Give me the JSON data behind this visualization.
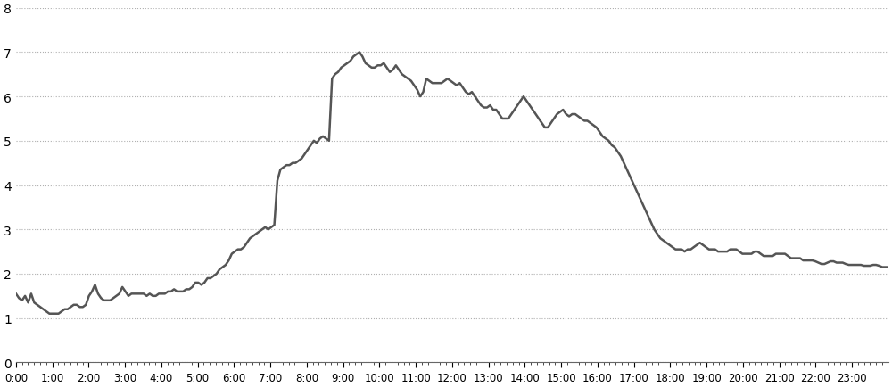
{
  "title": "",
  "ylabel": "",
  "xlabel": "",
  "ylim": [
    0,
    8
  ],
  "yticks": [
    0,
    1,
    2,
    3,
    4,
    5,
    6,
    7,
    8
  ],
  "line_color": "#555555",
  "line_width": 1.8,
  "background_color": "#ffffff",
  "grid_color": "#b0b0b0",
  "x_labels": [
    "0:00",
    "1:00",
    "2:00",
    "3:00",
    "4:00",
    "5:00",
    "6:00",
    "7:00",
    "8:00",
    "9:00",
    "10:00",
    "11:00",
    "12:00",
    "13:00",
    "14:00",
    "15:00",
    "16:00",
    "17:00",
    "18:00",
    "19:00",
    "20:00",
    "21:00",
    "22:00",
    "23:00"
  ],
  "values": [
    1.55,
    1.45,
    1.4,
    1.5,
    1.35,
    1.55,
    1.35,
    1.3,
    1.25,
    1.2,
    1.15,
    1.1,
    1.1,
    1.1,
    1.1,
    1.15,
    1.2,
    1.2,
    1.25,
    1.3,
    1.3,
    1.25,
    1.25,
    1.3,
    1.5,
    1.6,
    1.75,
    1.55,
    1.45,
    1.4,
    1.4,
    1.4,
    1.45,
    1.5,
    1.55,
    1.7,
    1.6,
    1.5,
    1.55,
    1.55,
    1.55,
    1.55,
    1.55,
    1.5,
    1.55,
    1.5,
    1.5,
    1.55,
    1.55,
    1.55,
    1.6,
    1.6,
    1.65,
    1.6,
    1.6,
    1.6,
    1.65,
    1.65,
    1.7,
    1.8,
    1.8,
    1.75,
    1.8,
    1.9,
    1.9,
    1.95,
    2.0,
    2.1,
    2.15,
    2.2,
    2.3,
    2.45,
    2.5,
    2.55,
    2.55,
    2.6,
    2.7,
    2.8,
    2.85,
    2.9,
    2.95,
    3.0,
    3.05,
    3.0,
    3.05,
    3.1,
    4.1,
    4.35,
    4.4,
    4.45,
    4.45,
    4.5,
    4.5,
    4.55,
    4.6,
    4.7,
    4.8,
    4.9,
    5.0,
    4.95,
    5.05,
    5.1,
    5.05,
    5.0,
    6.4,
    6.5,
    6.55,
    6.65,
    6.7,
    6.75,
    6.8,
    6.9,
    6.95,
    7.0,
    6.9,
    6.75,
    6.7,
    6.65,
    6.65,
    6.7,
    6.7,
    6.75,
    6.65,
    6.55,
    6.6,
    6.7,
    6.6,
    6.5,
    6.45,
    6.4,
    6.35,
    6.25,
    6.15,
    6.0,
    6.1,
    6.4,
    6.35,
    6.3,
    6.3,
    6.3,
    6.3,
    6.35,
    6.4,
    6.35,
    6.3,
    6.25,
    6.3,
    6.2,
    6.1,
    6.05,
    6.1,
    6.0,
    5.9,
    5.8,
    5.75,
    5.75,
    5.8,
    5.7,
    5.7,
    5.6,
    5.5,
    5.5,
    5.5,
    5.6,
    5.7,
    5.8,
    5.9,
    6.0,
    5.9,
    5.8,
    5.7,
    5.6,
    5.5,
    5.4,
    5.3,
    5.3,
    5.4,
    5.5,
    5.6,
    5.65,
    5.7,
    5.6,
    5.55,
    5.6,
    5.6,
    5.55,
    5.5,
    5.45,
    5.45,
    5.4,
    5.35,
    5.3,
    5.2,
    5.1,
    5.05,
    5.0,
    4.9,
    4.85,
    4.75,
    4.65,
    4.5,
    4.35,
    4.2,
    4.05,
    3.9,
    3.75,
    3.6,
    3.45,
    3.3,
    3.15,
    3.0,
    2.9,
    2.8,
    2.75,
    2.7,
    2.65,
    2.6,
    2.55,
    2.55,
    2.55,
    2.5,
    2.55,
    2.55,
    2.6,
    2.65,
    2.7,
    2.65,
    2.6,
    2.55,
    2.55,
    2.55,
    2.5,
    2.5,
    2.5,
    2.5,
    2.55,
    2.55,
    2.55,
    2.5,
    2.45,
    2.45,
    2.45,
    2.45,
    2.5,
    2.5,
    2.45,
    2.4,
    2.4,
    2.4,
    2.4,
    2.45,
    2.45,
    2.45,
    2.45,
    2.4,
    2.35,
    2.35,
    2.35,
    2.35,
    2.3,
    2.3,
    2.3,
    2.3,
    2.28,
    2.25,
    2.22,
    2.22,
    2.25,
    2.28,
    2.28,
    2.25,
    2.25,
    2.25,
    2.22,
    2.2,
    2.2,
    2.2,
    2.2,
    2.2,
    2.18,
    2.18,
    2.18,
    2.2,
    2.2,
    2.18,
    2.15,
    2.15,
    2.15
  ]
}
